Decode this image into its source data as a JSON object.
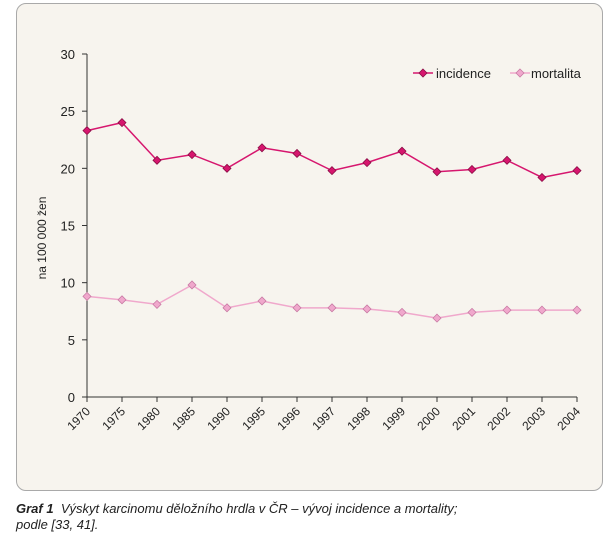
{
  "chart_data": {
    "type": "line",
    "categories": [
      "1970",
      "1975",
      "1980",
      "1985",
      "1990",
      "1995",
      "1996",
      "1997",
      "1998",
      "1999",
      "2000",
      "2001",
      "2002",
      "2003",
      "2004"
    ],
    "series": [
      {
        "name": "incidence",
        "color": "#d6166e",
        "values": [
          23.3,
          24.0,
          20.7,
          21.2,
          20.0,
          21.8,
          21.3,
          19.8,
          20.5,
          21.5,
          19.7,
          19.9,
          20.7,
          19.2,
          19.8
        ]
      },
      {
        "name": "mortalita",
        "color": "#f0a8cc",
        "values": [
          8.8,
          8.5,
          8.1,
          9.8,
          7.8,
          8.4,
          7.8,
          7.8,
          7.7,
          7.4,
          6.9,
          7.4,
          7.6,
          7.6,
          7.6
        ]
      }
    ],
    "ylabel": "na 100 000 žen",
    "ylim": [
      0,
      30
    ],
    "yticks": [
      0,
      5,
      10,
      15,
      20,
      25,
      30
    ],
    "grid": false,
    "legend": "top-right"
  },
  "caption": {
    "label": "Graf 1",
    "text": "Výskyt karcinomu děložního hrdla v ČR – vývoj incidence a mortality;",
    "text2": "podle [33, 41]."
  }
}
